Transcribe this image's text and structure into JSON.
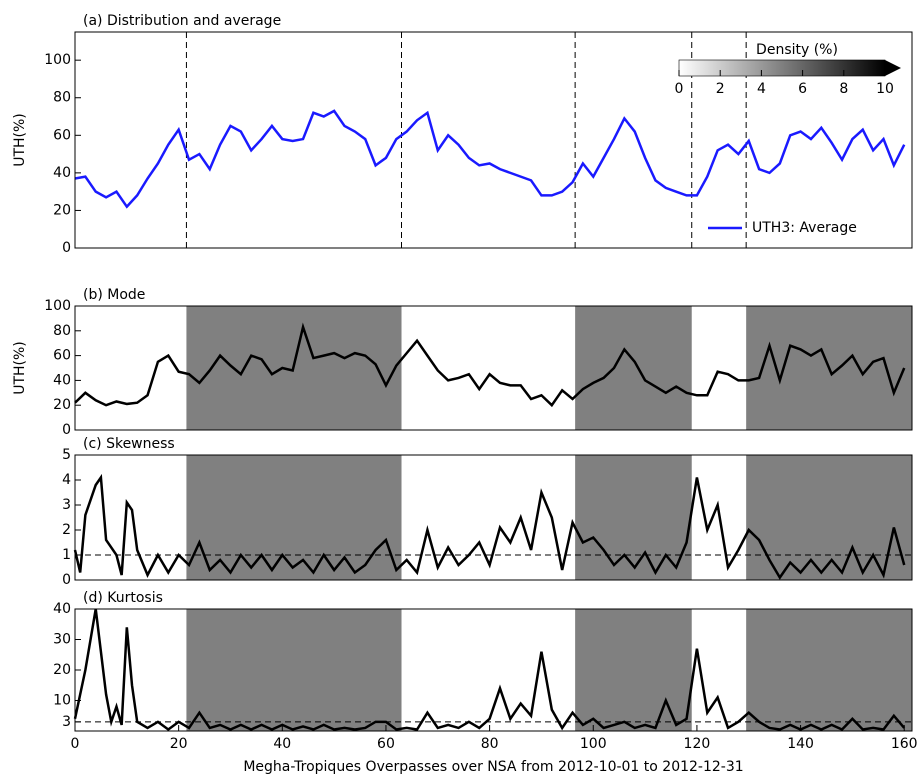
{
  "chart_data": [
    {
      "type": "line",
      "title": "(a) Distribution and average",
      "y_label": "UTH(%)",
      "xlim": [
        0,
        161.5
      ],
      "ylim": [
        0,
        115
      ],
      "yticks": [
        0,
        20,
        40,
        60,
        80,
        100
      ],
      "dashed_vlines": [
        21.5,
        63,
        96.5,
        119,
        129.5
      ],
      "legend": "lower right",
      "colorbar": {
        "label": "Density (%)",
        "lim": [
          0,
          10
        ],
        "ticks": [
          0,
          2,
          4,
          6,
          8,
          10
        ]
      },
      "series": [
        {
          "name": "UTH3: Average",
          "color": "#1a1aff",
          "x": [
            0,
            2,
            4,
            6,
            8,
            10,
            12,
            14,
            16,
            18,
            20,
            22,
            24,
            26,
            28,
            30,
            32,
            34,
            36,
            38,
            40,
            42,
            44,
            46,
            48,
            50,
            52,
            54,
            56,
            58,
            60,
            62,
            64,
            66,
            68,
            70,
            72,
            74,
            76,
            78,
            80,
            82,
            84,
            86,
            88,
            90,
            92,
            94,
            96,
            98,
            100,
            102,
            104,
            106,
            108,
            110,
            112,
            114,
            116,
            118,
            120,
            122,
            124,
            126,
            128,
            130,
            132,
            134,
            136,
            138,
            140,
            142,
            144,
            146,
            148,
            150,
            152,
            154,
            156,
            158,
            160
          ],
          "values": [
            37,
            38,
            30,
            27,
            30,
            22,
            28,
            37,
            45,
            55,
            63,
            47,
            50,
            42,
            55,
            65,
            62,
            52,
            58,
            65,
            58,
            57,
            58,
            72,
            70,
            73,
            65,
            62,
            58,
            44,
            48,
            58,
            62,
            68,
            72,
            52,
            60,
            55,
            48,
            44,
            45,
            42,
            40,
            38,
            36,
            28,
            28,
            30,
            35,
            45,
            38,
            48,
            58,
            69,
            62,
            48,
            36,
            32,
            30,
            28,
            28,
            38,
            52,
            55,
            50,
            57,
            42,
            40,
            45,
            60,
            62,
            58,
            64,
            56,
            47,
            58,
            63,
            52,
            58,
            44,
            55
          ]
        }
      ]
    },
    {
      "type": "line",
      "title": "(b) Mode",
      "y_label": "UTH(%)",
      "xlim": [
        0,
        161.5
      ],
      "ylim": [
        0,
        100
      ],
      "yticks": [
        0,
        20,
        40,
        60,
        80,
        100
      ],
      "shaded_spans": [
        [
          21.5,
          63
        ],
        [
          96.5,
          119
        ],
        [
          129.5,
          161.5
        ]
      ],
      "series": [
        {
          "color": "#000000",
          "x": [
            0,
            2,
            4,
            6,
            8,
            10,
            12,
            14,
            16,
            18,
            20,
            22,
            24,
            26,
            28,
            30,
            32,
            34,
            36,
            38,
            40,
            42,
            44,
            46,
            48,
            50,
            52,
            54,
            56,
            58,
            60,
            62,
            64,
            66,
            68,
            70,
            72,
            74,
            76,
            78,
            80,
            82,
            84,
            86,
            88,
            90,
            92,
            94,
            96,
            98,
            100,
            102,
            104,
            106,
            108,
            110,
            112,
            114,
            116,
            118,
            120,
            122,
            124,
            126,
            128,
            130,
            132,
            134,
            136,
            138,
            140,
            142,
            144,
            146,
            148,
            150,
            152,
            154,
            156,
            158,
            160
          ],
          "values": [
            22,
            30,
            24,
            20,
            23,
            21,
            22,
            28,
            55,
            60,
            47,
            45,
            38,
            48,
            60,
            52,
            45,
            60,
            57,
            45,
            50,
            48,
            83,
            58,
            60,
            62,
            58,
            62,
            60,
            53,
            36,
            52,
            62,
            72,
            60,
            48,
            40,
            42,
            45,
            33,
            45,
            38,
            36,
            36,
            25,
            28,
            20,
            32,
            25,
            33,
            38,
            42,
            50,
            65,
            55,
            40,
            35,
            30,
            35,
            30,
            28,
            28,
            47,
            45,
            40,
            40,
            42,
            68,
            40,
            68,
            65,
            60,
            65,
            45,
            52,
            60,
            45,
            55,
            58,
            30,
            50
          ]
        }
      ]
    },
    {
      "type": "line",
      "title": "(c) Skewness",
      "xlim": [
        0,
        161.5
      ],
      "ylim": [
        0,
        5
      ],
      "yticks": [
        0,
        1,
        2,
        3,
        4,
        5
      ],
      "hline": 1,
      "shaded_spans": [
        [
          21.5,
          63
        ],
        [
          96.5,
          119
        ],
        [
          129.5,
          161.5
        ]
      ],
      "series": [
        {
          "color": "#000000",
          "x": [
            0,
            1,
            2,
            4,
            5,
            6,
            8,
            9,
            10,
            11,
            12,
            14,
            16,
            18,
            20,
            22,
            24,
            26,
            28,
            30,
            32,
            34,
            36,
            38,
            40,
            42,
            44,
            46,
            48,
            50,
            52,
            54,
            56,
            58,
            60,
            62,
            64,
            66,
            68,
            70,
            72,
            74,
            76,
            78,
            80,
            82,
            84,
            86,
            88,
            90,
            92,
            94,
            96,
            98,
            100,
            102,
            104,
            106,
            108,
            110,
            112,
            114,
            116,
            118,
            120,
            122,
            124,
            126,
            128,
            130,
            132,
            134,
            136,
            138,
            140,
            142,
            144,
            146,
            148,
            150,
            152,
            154,
            156,
            158,
            160
          ],
          "values": [
            1.2,
            0.3,
            2.6,
            3.8,
            4.1,
            1.6,
            1.0,
            0.2,
            3.1,
            2.8,
            1.2,
            0.2,
            1.0,
            0.3,
            1.0,
            0.6,
            1.5,
            0.4,
            0.8,
            0.3,
            1.0,
            0.5,
            1.0,
            0.4,
            1.0,
            0.5,
            0.8,
            0.3,
            1.0,
            0.4,
            0.9,
            0.3,
            0.6,
            1.2,
            1.6,
            0.4,
            0.8,
            0.3,
            2.0,
            0.5,
            1.3,
            0.6,
            1.0,
            1.5,
            0.6,
            2.1,
            1.5,
            2.5,
            1.2,
            3.5,
            2.5,
            0.4,
            2.3,
            1.5,
            1.7,
            1.2,
            0.6,
            1.0,
            0.5,
            1.1,
            0.3,
            1.0,
            0.5,
            1.5,
            4.1,
            2.0,
            3.0,
            0.5,
            1.2,
            2.0,
            1.6,
            0.8,
            0.1,
            0.7,
            0.3,
            0.8,
            0.3,
            0.8,
            0.3,
            1.3,
            0.3,
            1.0,
            0.2,
            2.1,
            0.6
          ]
        }
      ]
    },
    {
      "type": "line",
      "title": "(d) Kurtosis",
      "x_label": "Megha-Tropiques Overpasses over NSA from 2012-10-01 to 2012-12-31",
      "xlim": [
        0,
        161.5
      ],
      "xticks": [
        0,
        20,
        40,
        60,
        80,
        100,
        120,
        140,
        160
      ],
      "ylim": [
        0,
        40
      ],
      "yticks": [
        3,
        10,
        20,
        30,
        40
      ],
      "hline": 3,
      "shaded_spans": [
        [
          21.5,
          63
        ],
        [
          96.5,
          119
        ],
        [
          129.5,
          161.5
        ]
      ],
      "series": [
        {
          "color": "#000000",
          "x": [
            0,
            2,
            4,
            6,
            7,
            8,
            9,
            10,
            11,
            12,
            14,
            16,
            18,
            20,
            22,
            24,
            26,
            28,
            30,
            32,
            34,
            36,
            38,
            40,
            42,
            44,
            46,
            48,
            50,
            52,
            54,
            56,
            58,
            60,
            62,
            64,
            66,
            68,
            70,
            72,
            74,
            76,
            78,
            80,
            82,
            84,
            86,
            88,
            90,
            92,
            94,
            96,
            98,
            100,
            102,
            104,
            106,
            108,
            110,
            112,
            114,
            116,
            118,
            120,
            122,
            124,
            126,
            128,
            130,
            132,
            134,
            136,
            138,
            140,
            142,
            144,
            146,
            148,
            150,
            152,
            154,
            156,
            158,
            160
          ],
          "values": [
            4,
            20,
            40,
            12,
            3,
            8,
            2,
            34,
            15,
            3,
            1,
            3,
            0.5,
            3,
            1,
            6,
            1,
            2,
            0.5,
            2,
            0.5,
            2,
            0.5,
            2,
            0.5,
            1.5,
            0.5,
            2,
            0.5,
            1,
            0.5,
            1,
            3,
            3,
            0.5,
            1,
            0.5,
            6,
            1,
            2,
            1,
            3,
            1,
            4,
            14,
            4,
            9,
            5,
            26,
            7,
            1,
            6,
            2,
            4,
            1,
            2,
            3,
            1,
            2,
            1,
            10,
            2,
            4,
            27,
            6,
            11,
            1,
            3,
            6,
            3,
            1,
            0.5,
            2,
            0.5,
            2,
            0.5,
            2,
            0.5,
            4,
            0.5,
            1,
            0.5,
            5,
            1
          ]
        }
      ]
    }
  ]
}
